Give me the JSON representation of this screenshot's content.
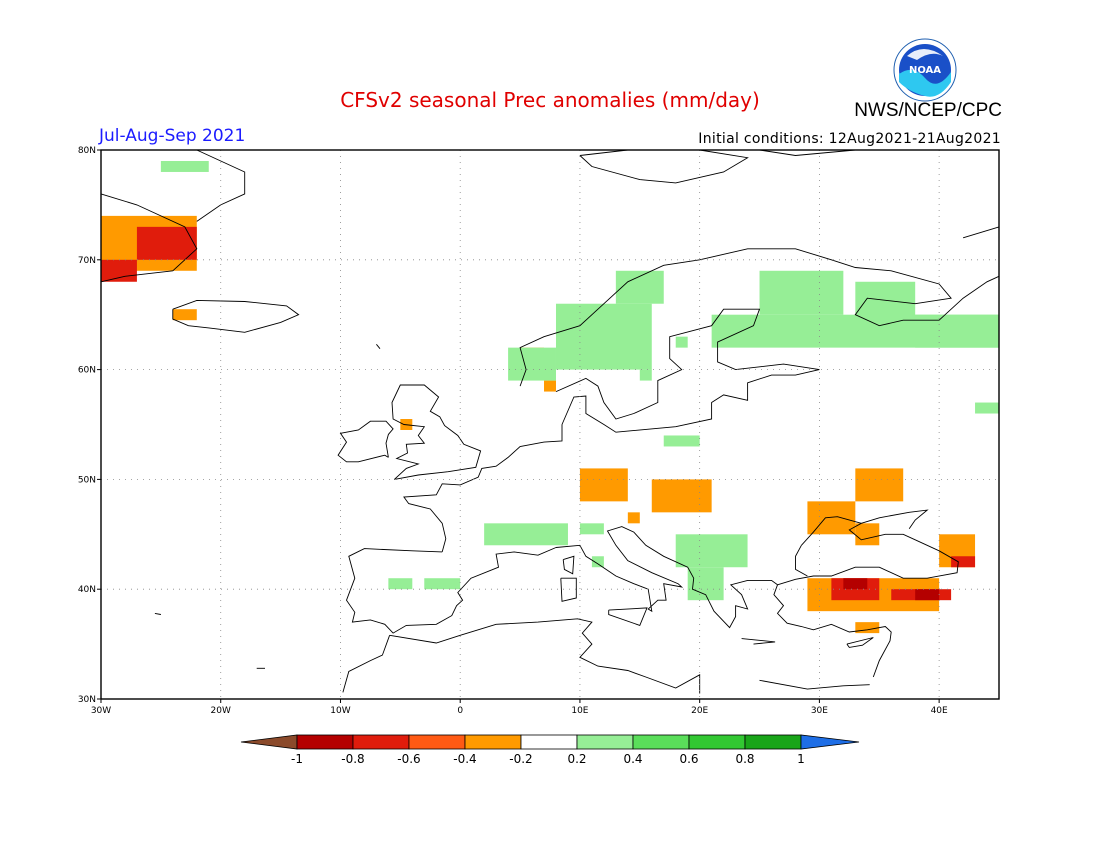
{
  "header": {
    "title": "CFSv2 seasonal Prec anomalies (mm/day)",
    "org": "NWS/NCEP/CPC",
    "period": "Jul-Aug-Sep 2021",
    "initial_conditions": "Initial conditions: 12Aug2021-21Aug2021",
    "logo_text": "NOAA"
  },
  "map": {
    "lon_range": [
      -30,
      45
    ],
    "lat_range": [
      30,
      80
    ],
    "lon_ticks": [
      "30W",
      "20W",
      "10W",
      "0",
      "10E",
      "20E",
      "30E",
      "40E"
    ],
    "lat_ticks": [
      "30N",
      "40N",
      "50N",
      "60N",
      "70N",
      "80N"
    ],
    "grid": "dotted"
  },
  "legend": {
    "labels": [
      "-1",
      "-0.8",
      "-0.6",
      "-0.4",
      "-0.2",
      "0.2",
      "0.4",
      "0.6",
      "0.8",
      "1"
    ],
    "colors": {
      "below": "#8b4a2b",
      "bins": [
        "#b40000",
        "#e01c0c",
        "#ff5a14",
        "#ff9a00",
        "#ffffff",
        "#96ee96",
        "#5ade5a",
        "#32c832",
        "#19a519"
      ],
      "above": "#1e6ee6"
    }
  },
  "anomalies": [
    {
      "lon": [
        -30,
        -22
      ],
      "lat": [
        69,
        74
      ],
      "level": "-0.4"
    },
    {
      "lon": [
        -27,
        -22
      ],
      "lat": [
        70,
        73
      ],
      "level": "-0.6"
    },
    {
      "lon": [
        -30,
        -27
      ],
      "lat": [
        68,
        70
      ],
      "level": "-0.6"
    },
    {
      "lon": [
        -24,
        -22
      ],
      "lat": [
        64.5,
        65.5
      ],
      "level": "-0.4"
    },
    {
      "lon": [
        5,
        7
      ],
      "lat": [
        60,
        62
      ],
      "level": "-0.4"
    },
    {
      "lon": [
        7,
        8
      ],
      "lat": [
        58,
        59
      ],
      "level": "-0.4"
    },
    {
      "lon": [
        -5,
        -4
      ],
      "lat": [
        54.5,
        55.5
      ],
      "level": "-0.4"
    },
    {
      "lon": [
        10,
        14
      ],
      "lat": [
        48,
        51
      ],
      "level": "-0.4"
    },
    {
      "lon": [
        16,
        21
      ],
      "lat": [
        47,
        50
      ],
      "level": "-0.4"
    },
    {
      "lon": [
        14,
        15
      ],
      "lat": [
        46,
        47
      ],
      "level": "-0.4"
    },
    {
      "lon": [
        29,
        33
      ],
      "lat": [
        45,
        48
      ],
      "level": "-0.4"
    },
    {
      "lon": [
        33,
        37
      ],
      "lat": [
        48,
        51
      ],
      "level": "-0.4"
    },
    {
      "lon": [
        33,
        35
      ],
      "lat": [
        44,
        46
      ],
      "level": "-0.4"
    },
    {
      "lon": [
        40,
        43
      ],
      "lat": [
        42,
        45
      ],
      "level": "-0.4"
    },
    {
      "lon": [
        29,
        40
      ],
      "lat": [
        38,
        41
      ],
      "level": "-0.4"
    },
    {
      "lon": [
        31,
        35
      ],
      "lat": [
        39,
        41
      ],
      "level": "-0.6"
    },
    {
      "lon": [
        32,
        34
      ],
      "lat": [
        40,
        41
      ],
      "level": "-0.8"
    },
    {
      "lon": [
        36,
        41
      ],
      "lat": [
        39,
        40
      ],
      "level": "-0.6"
    },
    {
      "lon": [
        38,
        40
      ],
      "lat": [
        39,
        40
      ],
      "level": "-0.8"
    },
    {
      "lon": [
        41,
        43
      ],
      "lat": [
        42,
        43
      ],
      "level": "-0.6"
    },
    {
      "lon": [
        33,
        35
      ],
      "lat": [
        36,
        37
      ],
      "level": "-0.4"
    },
    {
      "lon": [
        -25,
        -21
      ],
      "lat": [
        78,
        79
      ],
      "level": "0.2"
    },
    {
      "lon": [
        8,
        16
      ],
      "lat": [
        60,
        66
      ],
      "level": "0.2"
    },
    {
      "lon": [
        13,
        17
      ],
      "lat": [
        66,
        69
      ],
      "level": "0.2"
    },
    {
      "lon": [
        4,
        8
      ],
      "lat": [
        59,
        62
      ],
      "level": "0.2"
    },
    {
      "lon": [
        18,
        19
      ],
      "lat": [
        62,
        63
      ],
      "level": "0.2"
    },
    {
      "lon": [
        15,
        16
      ],
      "lat": [
        59,
        60
      ],
      "level": "0.2"
    },
    {
      "lon": [
        21,
        45
      ],
      "lat": [
        62,
        65
      ],
      "level": "0.2"
    },
    {
      "lon": [
        25,
        32
      ],
      "lat": [
        65,
        69
      ],
      "level": "0.2"
    },
    {
      "lon": [
        33,
        38
      ],
      "lat": [
        64,
        68
      ],
      "level": "0.2"
    },
    {
      "lon": [
        38,
        45
      ],
      "lat": [
        62,
        65
      ],
      "level": "0.2"
    },
    {
      "lon": [
        43,
        45
      ],
      "lat": [
        56,
        57
      ],
      "level": "0.2"
    },
    {
      "lon": [
        17,
        20
      ],
      "lat": [
        53,
        54
      ],
      "level": "0.2"
    },
    {
      "lon": [
        2,
        9
      ],
      "lat": [
        44,
        46
      ],
      "level": "0.2"
    },
    {
      "lon": [
        10,
        12
      ],
      "lat": [
        45,
        46
      ],
      "level": "0.2"
    },
    {
      "lon": [
        18,
        24
      ],
      "lat": [
        42,
        45
      ],
      "level": "0.2"
    },
    {
      "lon": [
        19,
        22
      ],
      "lat": [
        39,
        42
      ],
      "level": "0.2"
    },
    {
      "lon": [
        -6,
        -4
      ],
      "lat": [
        40,
        41
      ],
      "level": "0.2"
    },
    {
      "lon": [
        -3,
        0
      ],
      "lat": [
        40,
        41
      ],
      "level": "0.2"
    },
    {
      "lon": [
        11,
        12
      ],
      "lat": [
        42,
        43
      ],
      "level": "0.2"
    }
  ]
}
